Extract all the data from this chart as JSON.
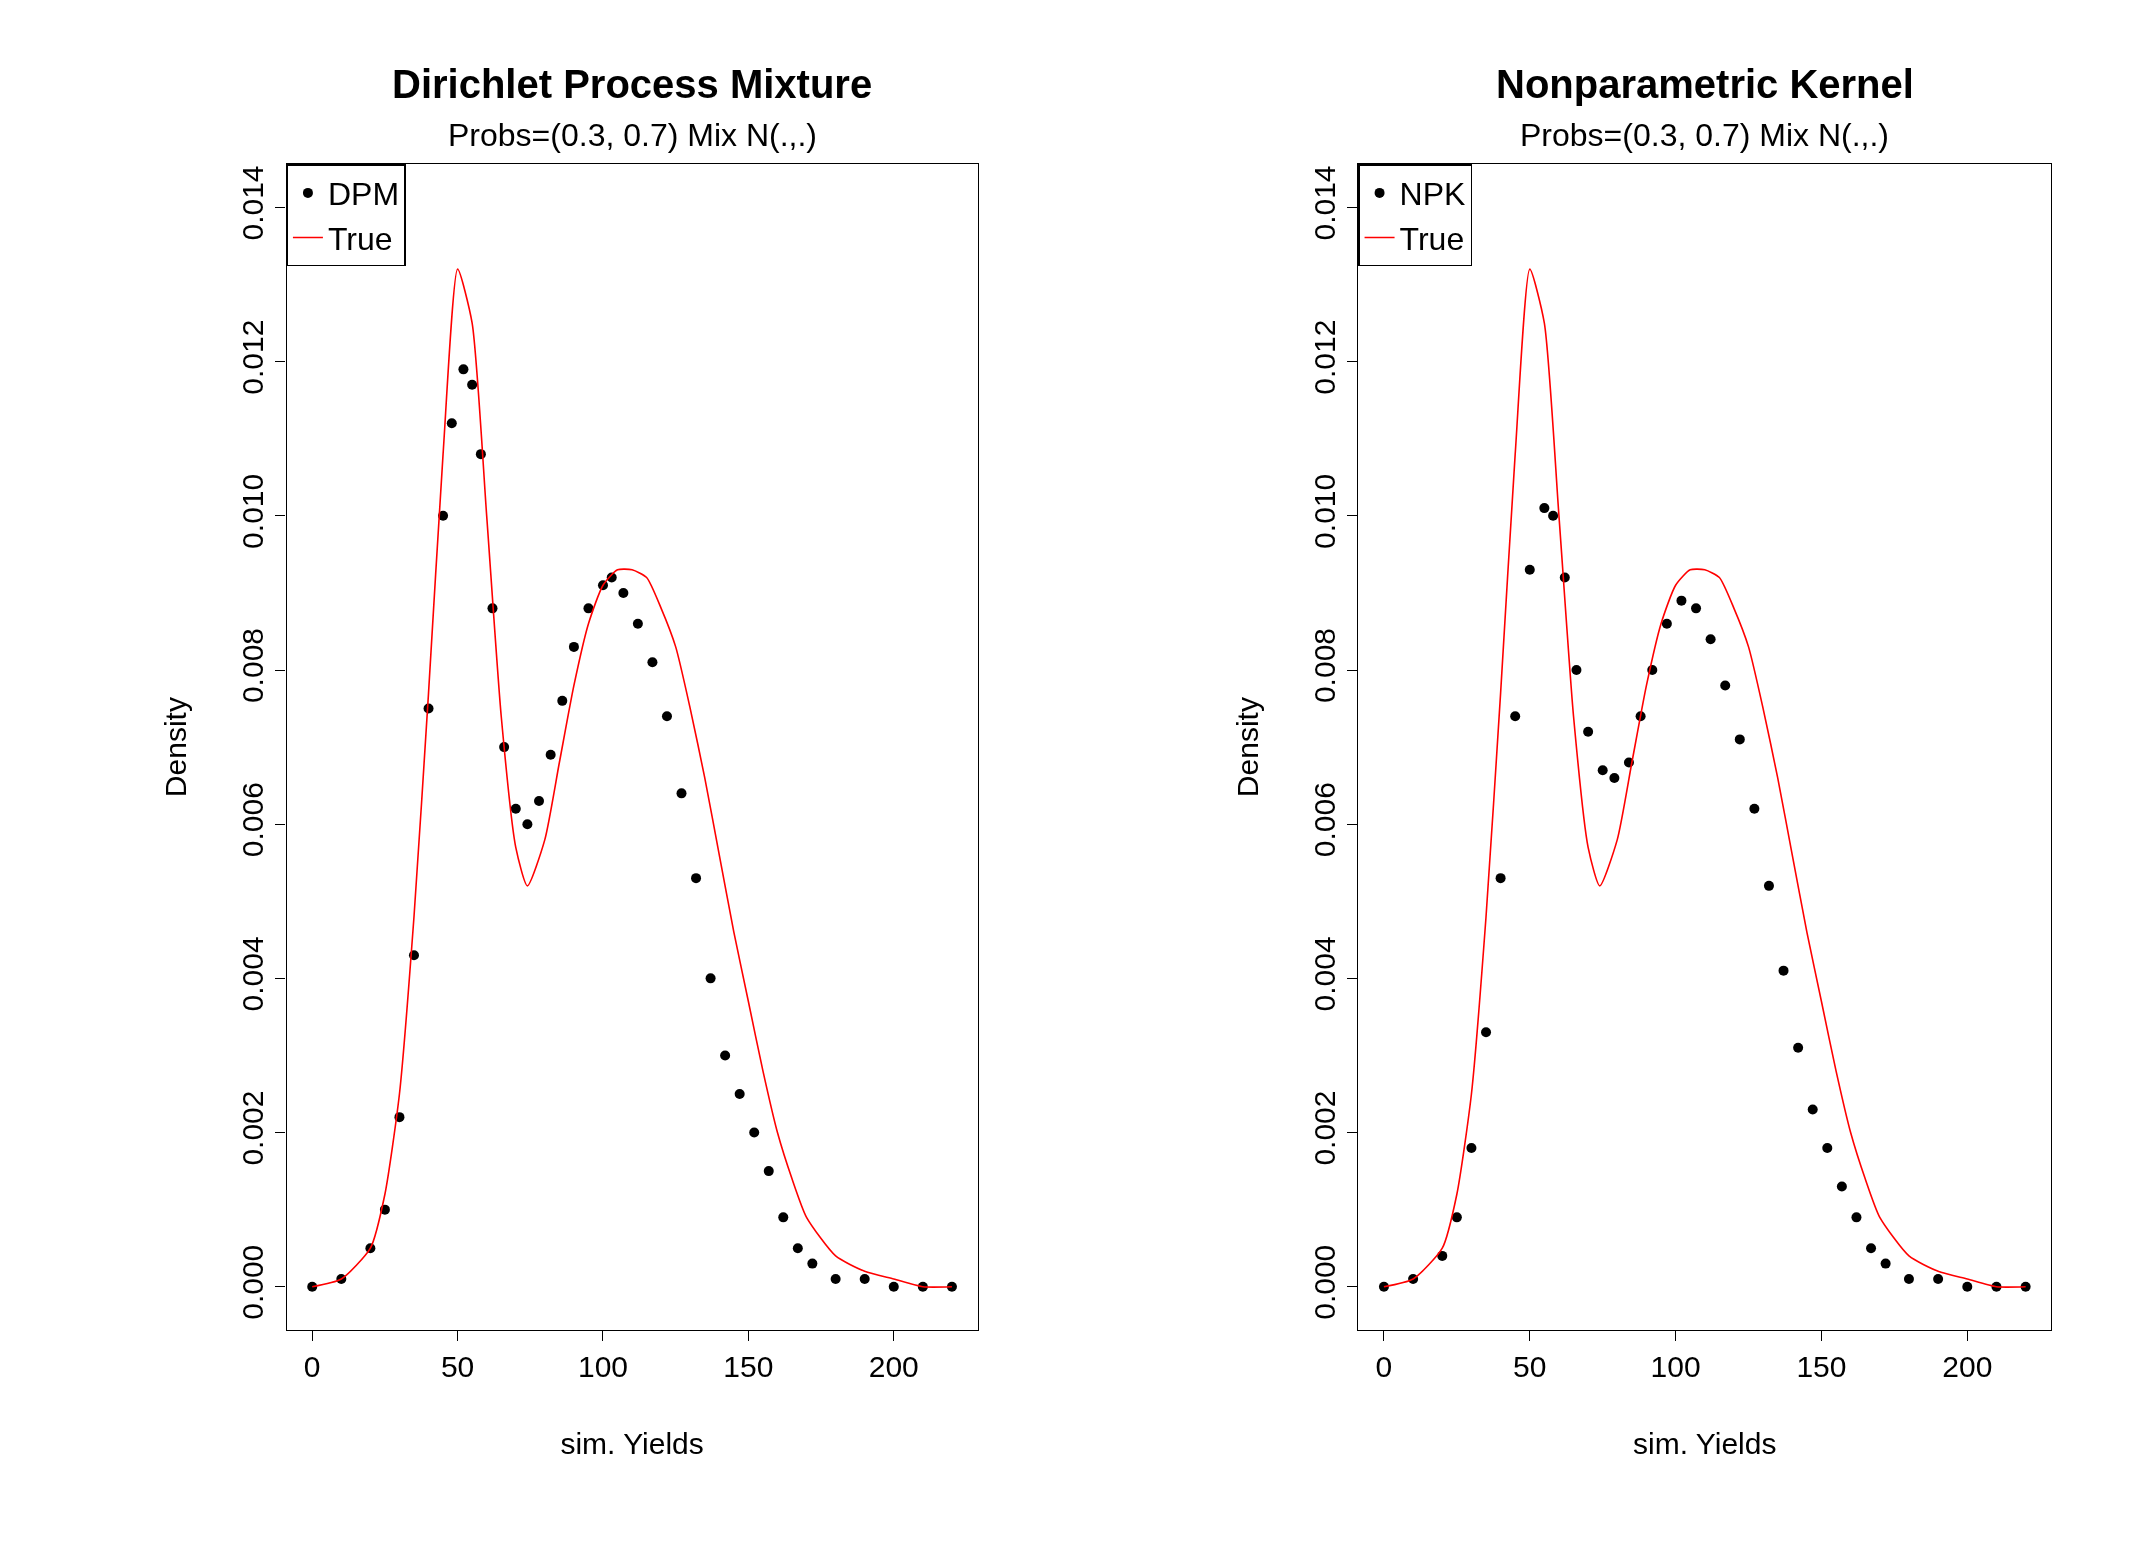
{
  "chart_data": [
    {
      "type": "scatter",
      "title": "Dirichlet Process Mixture",
      "subtitle": "Probs=(0.3, 0.7) Mix N(.,.)",
      "xlabel": "sim. Yields",
      "ylabel": "Density",
      "legend": "top left",
      "xlim": [
        -8.8,
        228.8
      ],
      "ylim": [
        -0.00056,
        0.01456
      ],
      "xticks": [
        0,
        50,
        100,
        150,
        200
      ],
      "yticks": [
        {
          "value": 0,
          "label": "0.000"
        },
        {
          "value": 0.002,
          "label": "0.002"
        },
        {
          "value": 0.004,
          "label": "0.004"
        },
        {
          "value": 0.006,
          "label": "0.006"
        },
        {
          "value": 0.008,
          "label": "0.008"
        },
        {
          "value": 0.01,
          "label": "0.010"
        },
        {
          "value": 0.012,
          "label": "0.012"
        },
        {
          "value": 0.014,
          "label": "0.014"
        }
      ],
      "series": [
        {
          "name": "DPM",
          "marker": "circle",
          "color": "#000000",
          "x": [
            0,
            10,
            20,
            25,
            30,
            35,
            40,
            45,
            48,
            52,
            55,
            58,
            62,
            66,
            70,
            74,
            78,
            82,
            86,
            90,
            95,
            100,
            103,
            107,
            112,
            117,
            122,
            127,
            132,
            137,
            142,
            147,
            152,
            157,
            162,
            167,
            172,
            180,
            190,
            200,
            210,
            220
          ],
          "values": [
            0,
            0.0001,
            0.0005,
            0.001,
            0.0022,
            0.0043,
            0.0075,
            0.01,
            0.0112,
            0.0119,
            0.0117,
            0.0108,
            0.0088,
            0.007,
            0.0062,
            0.006,
            0.0063,
            0.0069,
            0.0076,
            0.0083,
            0.0088,
            0.0091,
            0.0092,
            0.009,
            0.0086,
            0.0081,
            0.0074,
            0.0064,
            0.0053,
            0.004,
            0.003,
            0.0025,
            0.002,
            0.0015,
            0.0009,
            0.0005,
            0.0003,
            0.0001,
            0.0001,
            0,
            0,
            0
          ]
        },
        {
          "name": "True",
          "type": "line",
          "color": "#ff0000",
          "x": [
            0,
            10,
            20,
            25,
            30,
            35,
            40,
            45,
            50,
            55,
            60,
            65,
            70,
            74,
            80,
            85,
            90,
            95,
            100,
            105,
            110,
            115,
            120,
            125,
            130,
            135,
            140,
            145,
            150,
            155,
            160,
            165,
            170,
            180,
            190,
            200,
            210,
            220
          ],
          "values": [
            0,
            0.0001,
            0.0005,
            0.0012,
            0.0025,
            0.0048,
            0.0077,
            0.0108,
            0.0132,
            0.0125,
            0.01,
            0.0074,
            0.0057,
            0.0052,
            0.0058,
            0.0068,
            0.0078,
            0.0086,
            0.0091,
            0.0093,
            0.0093,
            0.0092,
            0.0088,
            0.0083,
            0.0075,
            0.0066,
            0.0056,
            0.0046,
            0.0037,
            0.0028,
            0.002,
            0.0014,
            0.0009,
            0.0004,
            0.0002,
            0.0001,
            0,
            0
          ]
        }
      ]
    },
    {
      "type": "scatter",
      "title": "Nonparametric Kernel",
      "subtitle": "Probs=(0.3, 0.7) Mix N(.,.)",
      "xlabel": "sim. Yields",
      "ylabel": "Density",
      "legend": "top left",
      "xlim": [
        -8.8,
        228.8
      ],
      "ylim": [
        -0.00056,
        0.01456
      ],
      "xticks": [
        0,
        50,
        100,
        150,
        200
      ],
      "yticks": [
        {
          "value": 0,
          "label": "0.000"
        },
        {
          "value": 0.002,
          "label": "0.002"
        },
        {
          "value": 0.004,
          "label": "0.004"
        },
        {
          "value": 0.006,
          "label": "0.006"
        },
        {
          "value": 0.008,
          "label": "0.008"
        },
        {
          "value": 0.01,
          "label": "0.010"
        },
        {
          "value": 0.012,
          "label": "0.012"
        },
        {
          "value": 0.014,
          "label": "0.014"
        }
      ],
      "series": [
        {
          "name": "NPK",
          "marker": "circle",
          "color": "#000000",
          "x": [
            0,
            10,
            20,
            25,
            30,
            35,
            40,
            45,
            50,
            55,
            58,
            62,
            66,
            70,
            75,
            79,
            84,
            88,
            92,
            97,
            102,
            107,
            112,
            117,
            122,
            127,
            132,
            137,
            142,
            147,
            152,
            157,
            162,
            167,
            172,
            180,
            190,
            200,
            210,
            220
          ],
          "values": [
            0,
            0.0001,
            0.0004,
            0.0009,
            0.0018,
            0.0033,
            0.0053,
            0.0074,
            0.0093,
            0.0101,
            0.01,
            0.0092,
            0.008,
            0.0072,
            0.0067,
            0.0066,
            0.0068,
            0.0074,
            0.008,
            0.0086,
            0.0089,
            0.0088,
            0.0084,
            0.0078,
            0.0071,
            0.0062,
            0.0052,
            0.0041,
            0.0031,
            0.0023,
            0.0018,
            0.0013,
            0.0009,
            0.0005,
            0.0003,
            0.0001,
            0.0001,
            0,
            0,
            0
          ]
        },
        {
          "name": "True",
          "type": "line",
          "color": "#ff0000",
          "x": [
            0,
            10,
            20,
            25,
            30,
            35,
            40,
            45,
            50,
            55,
            60,
            65,
            70,
            74,
            80,
            85,
            90,
            95,
            100,
            105,
            110,
            115,
            120,
            125,
            130,
            135,
            140,
            145,
            150,
            155,
            160,
            165,
            170,
            180,
            190,
            200,
            210,
            220
          ],
          "values": [
            0,
            0.0001,
            0.0005,
            0.0012,
            0.0025,
            0.0048,
            0.0077,
            0.0108,
            0.0132,
            0.0125,
            0.01,
            0.0074,
            0.0057,
            0.0052,
            0.0058,
            0.0068,
            0.0078,
            0.0086,
            0.0091,
            0.0093,
            0.0093,
            0.0092,
            0.0088,
            0.0083,
            0.0075,
            0.0066,
            0.0056,
            0.0046,
            0.0037,
            0.0028,
            0.002,
            0.0014,
            0.0009,
            0.0004,
            0.0002,
            0.0001,
            0,
            0
          ]
        }
      ]
    }
  ]
}
